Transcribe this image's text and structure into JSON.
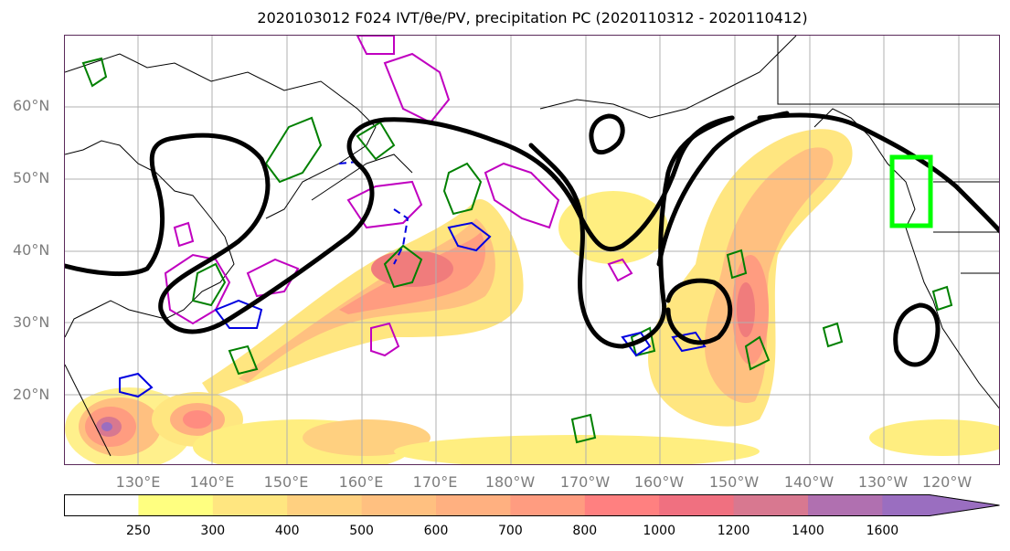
{
  "title": "2020103012 F024 IVT/θe/PV, precipitation PC (2020110312 - 2020110412)",
  "map": {
    "lat_labels": [
      "60°N",
      "50°N",
      "40°N",
      "30°N",
      "20°N"
    ],
    "lon_labels": [
      "130°E",
      "140°E",
      "150°E",
      "160°E",
      "170°E",
      "180°W",
      "170°W",
      "160°W",
      "150°W",
      "140°W",
      "130°W",
      "120°W"
    ],
    "region_box_color": "#00ff00"
  },
  "colorbar": {
    "labels": [
      "250",
      "300",
      "400",
      "500",
      "600",
      "700",
      "800",
      "1000",
      "1200",
      "1400",
      "1600"
    ],
    "colors": [
      "#ffffff",
      "#ffff80",
      "#ffe680",
      "#ffd080",
      "#ffc080",
      "#ffb080",
      "#ff9c80",
      "#ff8080",
      "#f07080",
      "#d87890",
      "#b070b0",
      "#9a6ec0"
    ]
  }
}
